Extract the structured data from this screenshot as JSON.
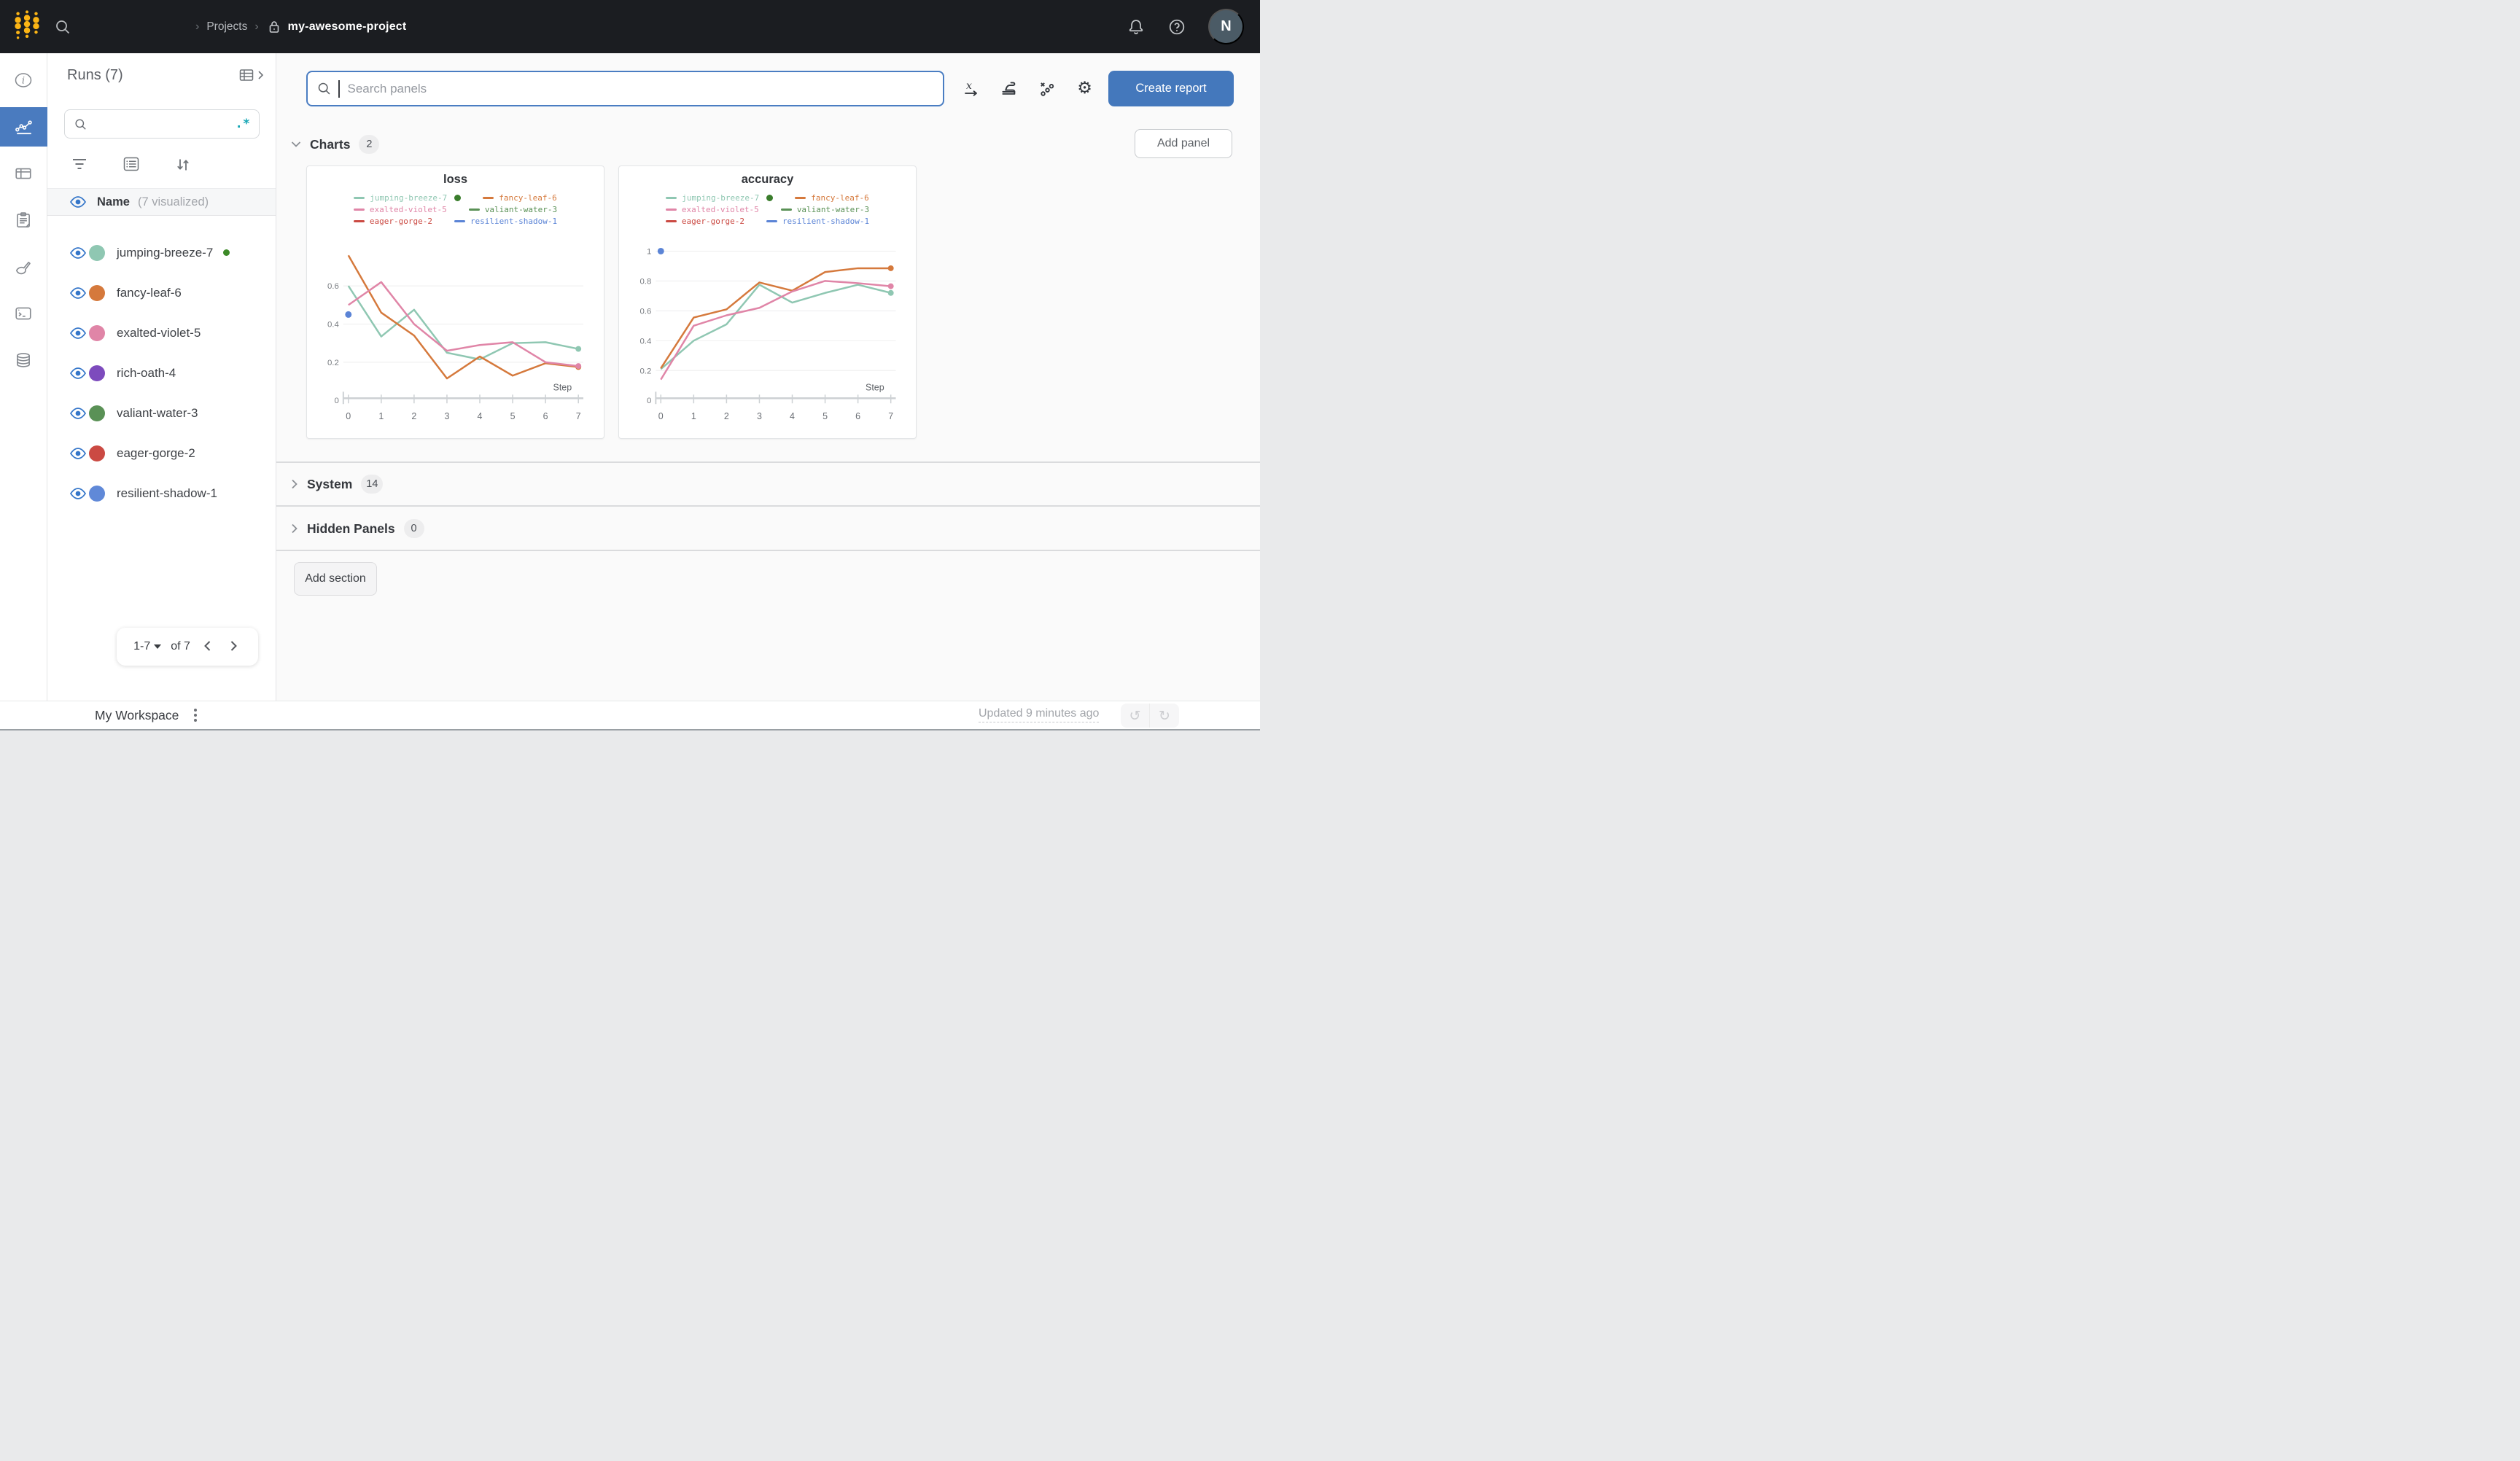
{
  "colors": {
    "accent_blue": "#4478bc",
    "rail_selected_blue": "#4a7bbf",
    "topbar_bg": "#1b1d21",
    "logo_yellow": "#fcb515",
    "regex_teal": "#13a5b4",
    "eye_blue": "#3576c9",
    "running_green": "#3d8a28",
    "legend_live_green": "#3a7d2c",
    "avatar_bg": "#4b5b66"
  },
  "topbar": {
    "breadcrumb": {
      "separator": "›",
      "section": "Projects",
      "project": "my-awesome-project"
    },
    "avatar_initial": "N"
  },
  "rail": {
    "items": [
      "info-icon",
      "line-chart-icon",
      "table-icon",
      "clipboard-icon",
      "brush-icon",
      "terminal-icon",
      "database-icon"
    ],
    "selected_index": 1
  },
  "sidebar": {
    "title": "Runs (7)",
    "regex_toggle": ".*",
    "columns_header": {
      "name": "Name",
      "visualized": "(7 visualized)"
    },
    "runs": [
      {
        "name": "jumping-breeze-7",
        "color": "#8fc7b2",
        "running": true
      },
      {
        "name": "fancy-leaf-6",
        "color": "#d5793c",
        "running": false
      },
      {
        "name": "exalted-violet-5",
        "color": "#e085a7",
        "running": false
      },
      {
        "name": "rich-oath-4",
        "color": "#7d4bbd",
        "running": false
      },
      {
        "name": "valiant-water-3",
        "color": "#5a9156",
        "running": false
      },
      {
        "name": "eager-gorge-2",
        "color": "#cb4a43",
        "running": false
      },
      {
        "name": "resilient-shadow-1",
        "color": "#6089d8",
        "running": false
      }
    ],
    "pagination": {
      "range": "1-7",
      "of": "of 7"
    }
  },
  "main": {
    "search_placeholder": "Search panels",
    "create_report_label": "Create report",
    "add_panel_label": "Add panel",
    "add_section_label": "Add section",
    "sections": [
      {
        "label": "Charts",
        "count": "2",
        "expanded": true
      },
      {
        "label": "System",
        "count": "14",
        "expanded": false
      },
      {
        "label": "Hidden Panels",
        "count": "0",
        "expanded": false
      }
    ]
  },
  "footer": {
    "workspace_label": "My Workspace",
    "updated_label": "Updated 9 minutes ago"
  },
  "chart_data": [
    {
      "type": "line",
      "title": "loss",
      "xlabel": "Step",
      "x": [
        0,
        1,
        2,
        3,
        4,
        5,
        6,
        7
      ],
      "yticks": [
        0,
        0.2,
        0.4,
        0.6
      ],
      "ylim": [
        0,
        0.79
      ],
      "grid": true,
      "legend_position": "top",
      "series": [
        {
          "name": "jumping-breeze-7",
          "color": "#8fc7b2",
          "legend_dot": true,
          "values": [
            0.6,
            0.335,
            0.475,
            0.25,
            0.215,
            0.3,
            0.305,
            0.27
          ]
        },
        {
          "name": "fancy-leaf-6",
          "color": "#d5793c",
          "legend_dot": false,
          "values": [
            0.76,
            0.46,
            0.34,
            0.115,
            0.23,
            0.13,
            0.195,
            0.175
          ]
        },
        {
          "name": "exalted-violet-5",
          "color": "#e085a7",
          "legend_dot": false,
          "values": [
            0.5,
            0.62,
            0.4,
            0.26,
            0.29,
            0.305,
            0.2,
            0.18
          ]
        },
        {
          "name": "valiant-water-3",
          "color": "#5a9156",
          "legend_dot": false,
          "values": []
        },
        {
          "name": "eager-gorge-2",
          "color": "#cb4a43",
          "legend_dot": false,
          "values": []
        },
        {
          "name": "resilient-shadow-1",
          "color": "#5b84d6",
          "legend_dot": false,
          "values": [
            0.45
          ]
        }
      ]
    },
    {
      "type": "line",
      "title": "accuracy",
      "xlabel": "Step",
      "x": [
        0,
        1,
        2,
        3,
        4,
        5,
        6,
        7
      ],
      "yticks": [
        0,
        0.2,
        0.4,
        0.6,
        0.8,
        1
      ],
      "ylim": [
        0,
        1.01
      ],
      "grid": true,
      "legend_position": "top",
      "series": [
        {
          "name": "jumping-breeze-7",
          "color": "#8fc7b2",
          "legend_dot": true,
          "values": [
            0.21,
            0.4,
            0.51,
            0.775,
            0.655,
            0.72,
            0.775,
            0.72
          ]
        },
        {
          "name": "fancy-leaf-6",
          "color": "#d5793c",
          "legend_dot": false,
          "values": [
            0.215,
            0.555,
            0.61,
            0.79,
            0.735,
            0.86,
            0.885,
            0.885
          ]
        },
        {
          "name": "exalted-violet-5",
          "color": "#e085a7",
          "legend_dot": false,
          "values": [
            0.14,
            0.5,
            0.57,
            0.62,
            0.73,
            0.8,
            0.785,
            0.765
          ]
        },
        {
          "name": "valiant-water-3",
          "color": "#5a9156",
          "legend_dot": false,
          "values": []
        },
        {
          "name": "eager-gorge-2",
          "color": "#cb4a43",
          "legend_dot": false,
          "values": []
        },
        {
          "name": "resilient-shadow-1",
          "color": "#5b84d6",
          "legend_dot": false,
          "values": [
            1
          ]
        }
      ]
    }
  ]
}
